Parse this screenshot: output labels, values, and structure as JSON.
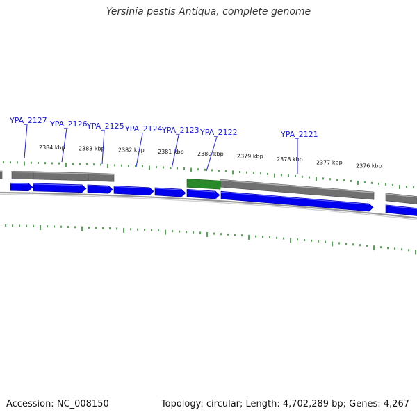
{
  "title": "Yersinia pestis Antiqua, complete genome",
  "footer": {
    "accession": "Accession: NC_008150",
    "summary": "Topology: circular; Length: 4,702,289 bp; Genes: 4,267"
  },
  "colors": {
    "forward_cds": "#0000ee",
    "gene_track": "#707070",
    "highlight_gene": "#2a8a2a",
    "ticks": "#1a8a1a",
    "gene_label": "#1a1adf"
  },
  "scale_labels": [
    "2384 kbp",
    "2383 kbp",
    "2382 kbp",
    "2381 kbp",
    "2380 kbp",
    "2379 kbp",
    "2378 kbp",
    "2377 kbp",
    "2376 kbp"
  ],
  "genes": [
    {
      "name": "YPA_2127",
      "highlight": false
    },
    {
      "name": "YPA_2126",
      "highlight": false
    },
    {
      "name": "YPA_2125",
      "highlight": false
    },
    {
      "name": "YPA_2124",
      "highlight": false
    },
    {
      "name": "YPA_2123",
      "highlight": false
    },
    {
      "name": "YPA_2122",
      "highlight": true
    },
    {
      "name": "YPA_2121",
      "highlight": false
    }
  ]
}
